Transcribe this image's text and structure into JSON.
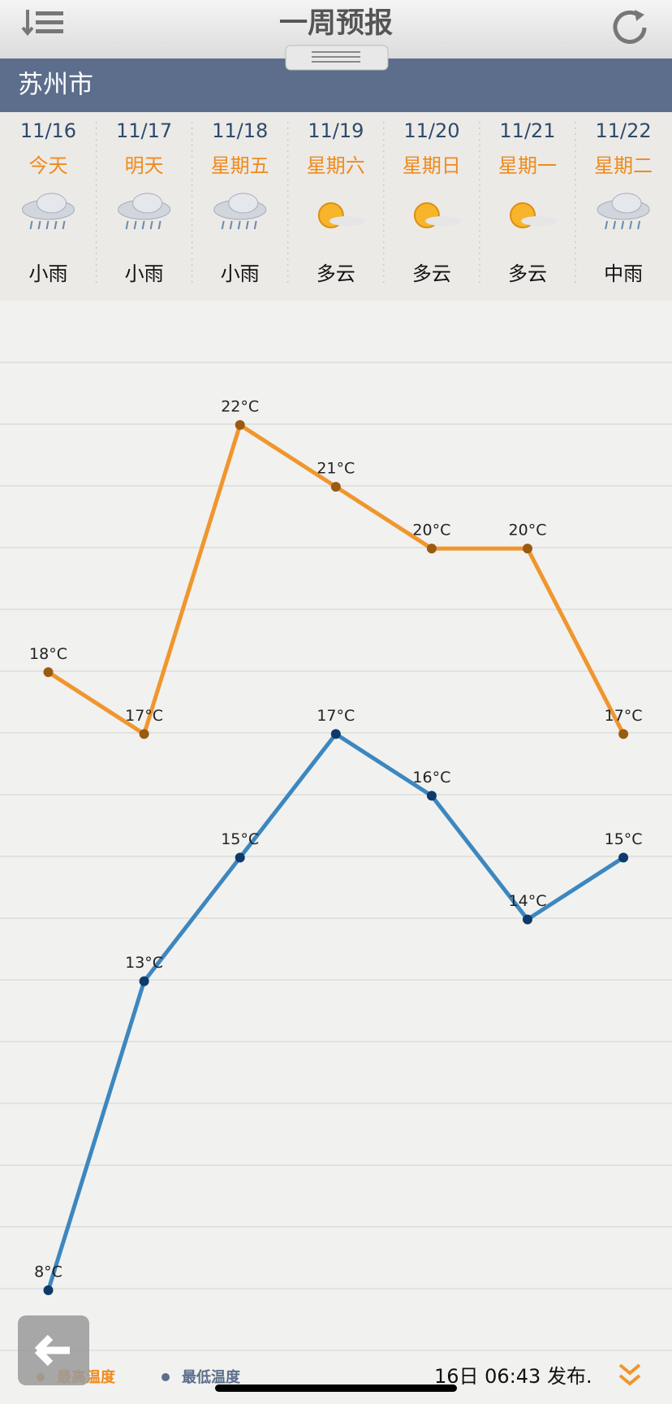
{
  "header": {
    "title": "一周预报",
    "city": "苏州市"
  },
  "days": [
    {
      "weekday": "今天",
      "weather": "小雨"
    },
    {
      "weekday": "明天",
      "weather": "小雨"
    },
    {
      "weekday": "星期五",
      "weather": "小雨"
    },
    {
      "weekday": "星期六",
      "weather": "多云"
    },
    {
      "weekday": "星期日",
      "weather": "多云"
    },
    {
      "weekday": "星期一",
      "weather": "多云"
    },
    {
      "weekday": "星期二",
      "weather": "中雨"
    }
  ],
  "chart_data": {
    "type": "line",
    "categories": [
      "11/16",
      "11/17",
      "11/18",
      "11/19",
      "11/20",
      "11/21",
      "11/22"
    ],
    "series": [
      {
        "name": "最高温度",
        "color": "#f0962e",
        "values": [
          18,
          17,
          22,
          21,
          20,
          20,
          17
        ],
        "value_labels": [
          "18°C",
          "17°C",
          "22°C",
          "21°C",
          "20°C",
          "20°C",
          "17°C"
        ]
      },
      {
        "name": "最低温度",
        "color": "#3d87bf",
        "values": [
          8,
          13,
          15,
          17,
          16,
          14,
          15
        ],
        "value_labels": [
          "8°C",
          "13°C",
          "15°C",
          "17°C",
          "16°C",
          "14°C",
          "15°C"
        ]
      }
    ]
  },
  "footer": {
    "published": "16日 06:43 发布."
  }
}
